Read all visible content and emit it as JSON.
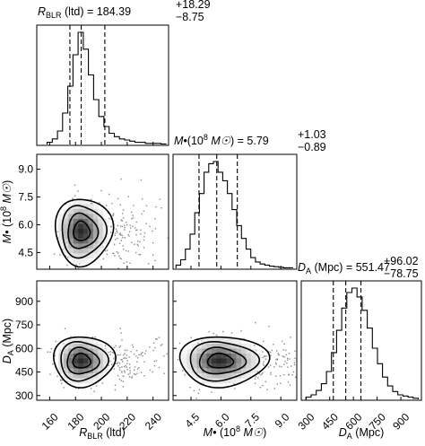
{
  "chart_data": {
    "type": "corner",
    "parameters": [
      {
        "key": "rblr",
        "label_main": "R",
        "label_sub": "BLR",
        "unit": "(ltd)",
        "median": 184.39,
        "plus": "+18.29",
        "minus": "−8.75",
        "value_text": "184.39",
        "quantiles": [
          175.64,
          184.39,
          202.68
        ],
        "range": [
          150,
          252
        ],
        "ticks": [
          "160",
          "180",
          "200",
          "220",
          "240"
        ],
        "tick_values": [
          160,
          180,
          200,
          220,
          240
        ]
      },
      {
        "key": "mbh",
        "label_main": "M•",
        "label_unit_pre": "(10",
        "label_exp": "8",
        "label_unit_sym": "M☉",
        "label_unit_post": ")",
        "median": 5.79,
        "plus": "+1.03",
        "minus": "−0.89",
        "value_text": "5.79",
        "quantiles": [
          4.9,
          5.79,
          6.82
        ],
        "range": [
          3.6,
          9.8
        ],
        "ticks": [
          "4.5",
          "6.0",
          "7.5",
          "9.0"
        ],
        "tick_values": [
          4.5,
          6.0,
          7.5,
          9.0
        ]
      },
      {
        "key": "da",
        "label_main": "D",
        "label_sub": "A",
        "unit": "(Mpc)",
        "median": 551.47,
        "plus": "+96.02",
        "minus": "−78.75",
        "value_text": "551.47",
        "quantiles": [
          472.72,
          551.47,
          647.49
        ],
        "range": [
          270,
          1030
        ],
        "ticks": [
          "300",
          "450",
          "600",
          "750",
          "900"
        ],
        "tick_values": [
          300,
          450,
          600,
          750,
          900
        ]
      }
    ],
    "histograms": {
      "rblr": [
        0.02,
        0.05,
        0.12,
        0.28,
        0.52,
        0.8,
        1.0,
        0.85,
        0.62,
        0.4,
        0.25,
        0.16,
        0.1,
        0.07,
        0.05,
        0.04,
        0.03,
        0.02,
        0.02,
        0.01,
        0.01,
        0.01,
        0.005
      ],
      "mbh": [
        0.03,
        0.08,
        0.18,
        0.32,
        0.52,
        0.7,
        0.9,
        0.98,
        1.0,
        0.9,
        0.82,
        0.7,
        0.55,
        0.4,
        0.28,
        0.18,
        0.1,
        0.06,
        0.04,
        0.03,
        0.02,
        0.015,
        0.01,
        0.005,
        0.005
      ],
      "da": [
        0.02,
        0.04,
        0.08,
        0.14,
        0.25,
        0.42,
        0.62,
        0.82,
        0.96,
        1.0,
        0.92,
        0.8,
        0.64,
        0.46,
        0.32,
        0.2,
        0.12,
        0.07,
        0.04,
        0.03,
        0.02,
        0.01
      ]
    },
    "joint": {
      "rblr_mbh": {
        "center": [
          184,
          5.65
        ],
        "sigma": [
          7.5,
          0.7
        ]
      },
      "rblr_da": {
        "center": [
          184,
          520
        ],
        "sigma": [
          8,
          62
        ]
      },
      "mbh_da": {
        "center": [
          5.9,
          520
        ],
        "sigma": [
          0.75,
          62
        ]
      }
    }
  }
}
